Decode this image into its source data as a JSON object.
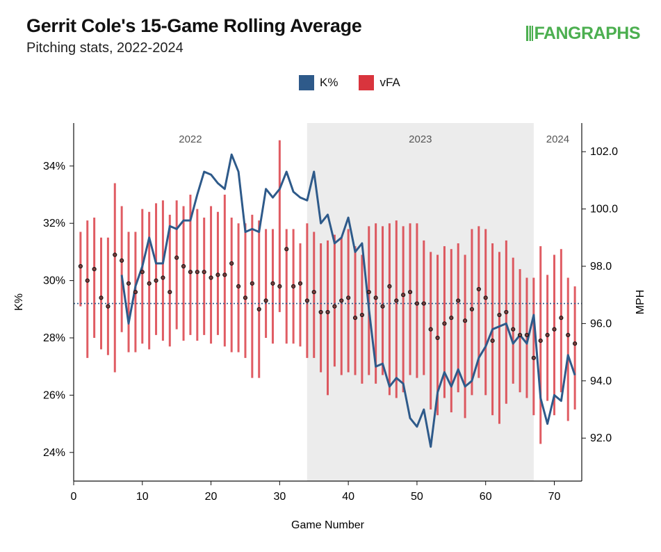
{
  "title": "Gerrit Cole's 15-Game Rolling Average",
  "subtitle": "Pitching stats, 2022-2024",
  "logo_text": "FANGRAPHS",
  "colors": {
    "k_pct": "#2e5a8a",
    "vfa": "#d9343d",
    "shade": "#ececec",
    "logo": "#4caf50"
  },
  "chart_data": {
    "type": "line",
    "xlabel": "Game Number",
    "ylabel_left": "K%",
    "ylabel_right": "MPH",
    "xlim": [
      0,
      74
    ],
    "ylim_left": [
      23,
      35.5
    ],
    "ylim_right": [
      90.5,
      103
    ],
    "x_ticks": [
      0,
      10,
      20,
      30,
      40,
      50,
      60,
      70
    ],
    "y_ticks_left": [
      24,
      26,
      28,
      30,
      32,
      34
    ],
    "y_tick_labels_left": [
      "24%",
      "26%",
      "28%",
      "30%",
      "32%",
      "34%"
    ],
    "y_ticks_right": [
      92,
      94,
      96,
      98,
      100,
      102
    ],
    "y_tick_labels_right": [
      "92.0",
      "94.0",
      "96.0",
      "98.0",
      "100.0",
      "102.0"
    ],
    "seasons": [
      {
        "label": "2022",
        "start": 0,
        "end": 34,
        "shaded": false
      },
      {
        "label": "2023",
        "start": 34,
        "end": 67,
        "shaded": true
      },
      {
        "label": "2024",
        "start": 67,
        "end": 74,
        "shaded": false
      }
    ],
    "reference_line_k_pct": 29.2,
    "legend": [
      "K%",
      "vFA"
    ],
    "series": [
      {
        "name": "K%",
        "axis": "left",
        "x": [
          1,
          2,
          3,
          4,
          5,
          6,
          7,
          8,
          9,
          10,
          11,
          12,
          13,
          14,
          15,
          16,
          17,
          18,
          19,
          20,
          21,
          22,
          23,
          24,
          25,
          26,
          27,
          28,
          29,
          30,
          31,
          32,
          33,
          34,
          35,
          36,
          37,
          38,
          39,
          40,
          41,
          42,
          43,
          44,
          45,
          46,
          47,
          48,
          49,
          50,
          51,
          52,
          53,
          54,
          55,
          56,
          57,
          58,
          59,
          60,
          61,
          62,
          63,
          64,
          65,
          66,
          67,
          68,
          69,
          70,
          71,
          72,
          73
        ],
        "values": [
          null,
          null,
          null,
          null,
          null,
          null,
          30.2,
          28.5,
          29.8,
          30.5,
          31.5,
          30.6,
          30.6,
          31.9,
          31.8,
          32.1,
          32.1,
          33.0,
          33.8,
          33.7,
          33.4,
          33.2,
          34.4,
          33.8,
          31.7,
          31.8,
          31.7,
          33.2,
          32.9,
          33.2,
          33.8,
          33.1,
          32.9,
          32.8,
          33.8,
          32.0,
          32.3,
          31.3,
          31.5,
          32.2,
          31.0,
          31.3,
          29.0,
          27.0,
          27.1,
          26.3,
          26.6,
          26.4,
          25.2,
          24.9,
          25.5,
          24.2,
          26.1,
          26.8,
          26.3,
          26.9,
          26.3,
          26.5,
          27.3,
          27.7,
          28.3,
          28.4,
          28.5,
          27.8,
          28.1,
          27.8,
          28.8,
          25.9,
          25.0,
          26.0,
          25.8,
          27.4,
          26.7
        ]
      },
      {
        "name": "vFA",
        "axis": "right",
        "type": "range",
        "x": [
          1,
          2,
          3,
          4,
          5,
          6,
          7,
          8,
          9,
          10,
          11,
          12,
          13,
          14,
          15,
          16,
          17,
          18,
          19,
          20,
          21,
          22,
          23,
          24,
          25,
          26,
          27,
          28,
          29,
          30,
          31,
          32,
          33,
          34,
          35,
          36,
          37,
          38,
          39,
          40,
          41,
          42,
          43,
          44,
          45,
          46,
          47,
          48,
          49,
          50,
          51,
          52,
          53,
          54,
          55,
          56,
          57,
          58,
          59,
          60,
          61,
          62,
          63,
          64,
          65,
          66,
          67,
          68,
          69,
          70,
          71,
          72,
          73
        ],
        "mean": [
          98.0,
          97.5,
          97.9,
          96.9,
          96.6,
          98.4,
          98.2,
          97.4,
          97.1,
          97.8,
          97.4,
          97.5,
          97.6,
          97.1,
          98.3,
          98.0,
          97.8,
          97.8,
          97.8,
          97.6,
          97.7,
          97.7,
          98.1,
          97.3,
          96.9,
          97.4,
          96.5,
          96.8,
          97.4,
          97.3,
          98.6,
          97.3,
          97.4,
          96.8,
          97.1,
          96.4,
          96.4,
          96.6,
          96.8,
          96.9,
          96.2,
          96.3,
          97.1,
          96.9,
          96.6,
          97.3,
          96.8,
          97.0,
          97.1,
          96.7,
          96.7,
          95.8,
          95.5,
          96.0,
          96.2,
          96.8,
          96.1,
          96.5,
          97.2,
          96.9,
          95.4,
          96.3,
          96.4,
          95.8,
          95.6,
          95.6,
          94.8,
          95.4,
          95.6,
          95.8,
          96.2,
          95.6,
          95.3
        ],
        "low": [
          96.6,
          94.8,
          95.5,
          95.1,
          94.9,
          94.3,
          95.7,
          95.0,
          95.0,
          95.3,
          95.1,
          95.6,
          95.4,
          95.2,
          95.8,
          95.4,
          95.6,
          95.4,
          95.6,
          95.3,
          95.6,
          95.2,
          95.0,
          95.0,
          94.8,
          94.1,
          94.1,
          95.5,
          95.3,
          96.4,
          95.3,
          95.3,
          95.2,
          94.8,
          94.8,
          94.3,
          93.5,
          94.5,
          94.2,
          94.3,
          94.2,
          93.9,
          94.2,
          93.9,
          94.2,
          93.5,
          93.4,
          93.6,
          94.2,
          94.1,
          94.2,
          93.0,
          92.8,
          93.4,
          92.9,
          93.6,
          92.7,
          93.5,
          94.1,
          93.5,
          92.8,
          92.5,
          93.2,
          93.9,
          93.6,
          93.4,
          92.8,
          91.8,
          93.3,
          92.8,
          93.6,
          92.6,
          93.0
        ],
        "high": [
          99.2,
          99.6,
          99.7,
          99.0,
          99.0,
          100.9,
          100.1,
          99.2,
          99.2,
          100.0,
          99.9,
          100.2,
          100.3,
          99.8,
          100.3,
          100.1,
          100.5,
          100.0,
          99.7,
          100.1,
          99.9,
          100.5,
          99.7,
          99.5,
          99.5,
          99.8,
          99.6,
          99.3,
          99.3,
          102.4,
          99.3,
          99.3,
          98.8,
          99.5,
          99.2,
          98.8,
          98.9,
          99.1,
          99.0,
          99.3,
          98.7,
          98.4,
          99.4,
          99.5,
          99.4,
          99.5,
          99.6,
          99.4,
          99.5,
          99.5,
          98.9,
          98.5,
          98.4,
          98.7,
          98.6,
          98.8,
          98.4,
          99.3,
          99.4,
          99.3,
          98.8,
          98.5,
          98.9,
          98.3,
          97.9,
          97.6,
          97.6,
          98.7,
          97.7,
          98.4,
          98.6,
          97.6,
          97.3
        ]
      }
    ]
  }
}
